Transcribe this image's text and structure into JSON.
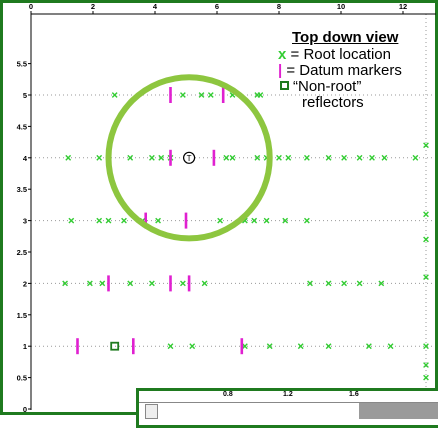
{
  "chart_data": {
    "type": "scatter",
    "title": "",
    "xlabel": "",
    "ylabel": "",
    "xlim": [
      0,
      13
    ],
    "ylim": [
      0,
      6
    ],
    "x_ticks": [
      "0",
      "2",
      "4",
      "6",
      "8",
      "10",
      "12"
    ],
    "y_ticks": [
      "0",
      "0.5",
      "1",
      "1.5",
      "2",
      "2.5",
      "3",
      "3.5",
      "4",
      "4.5",
      "5",
      "5.5"
    ],
    "grid_rows": [
      1,
      2,
      3,
      4,
      5
    ],
    "series": [
      {
        "name": "Root location",
        "marker": "x",
        "color": "#33cc33",
        "points": [
          [
            2.7,
            5.0
          ],
          [
            4.9,
            5.0
          ],
          [
            5.5,
            5.0
          ],
          [
            5.8,
            5.0
          ],
          [
            6.5,
            5.0
          ],
          [
            7.3,
            5.0
          ],
          [
            7.4,
            5.0
          ],
          [
            1.2,
            4.0
          ],
          [
            2.2,
            4.0
          ],
          [
            2.5,
            4.0
          ],
          [
            3.2,
            4.0
          ],
          [
            3.9,
            4.0
          ],
          [
            4.2,
            4.0
          ],
          [
            4.5,
            4.0
          ],
          [
            6.3,
            4.0
          ],
          [
            6.5,
            4.0
          ],
          [
            7.3,
            4.0
          ],
          [
            7.6,
            4.0
          ],
          [
            8.0,
            4.0
          ],
          [
            8.3,
            4.0
          ],
          [
            8.9,
            4.0
          ],
          [
            9.6,
            4.0
          ],
          [
            10.1,
            4.0
          ],
          [
            10.6,
            4.0
          ],
          [
            11.0,
            4.0
          ],
          [
            11.4,
            4.0
          ],
          [
            12.4,
            4.0
          ],
          [
            1.3,
            3.0
          ],
          [
            2.2,
            3.0
          ],
          [
            2.5,
            3.0
          ],
          [
            3.0,
            3.0
          ],
          [
            3.6,
            3.0
          ],
          [
            4.1,
            3.0
          ],
          [
            6.1,
            3.0
          ],
          [
            6.9,
            3.0
          ],
          [
            7.2,
            3.0
          ],
          [
            7.6,
            3.0
          ],
          [
            8.2,
            3.0
          ],
          [
            8.9,
            3.0
          ],
          [
            1.1,
            2.0
          ],
          [
            1.9,
            2.0
          ],
          [
            2.3,
            2.0
          ],
          [
            3.2,
            2.0
          ],
          [
            3.9,
            2.0
          ],
          [
            4.9,
            2.0
          ],
          [
            5.6,
            2.0
          ],
          [
            9.0,
            2.0
          ],
          [
            9.6,
            2.0
          ],
          [
            10.1,
            2.0
          ],
          [
            10.6,
            2.0
          ],
          [
            11.3,
            2.0
          ],
          [
            4.5,
            1.0
          ],
          [
            5.2,
            1.0
          ],
          [
            6.9,
            1.0
          ],
          [
            7.7,
            1.0
          ],
          [
            8.7,
            1.0
          ],
          [
            9.6,
            1.0
          ],
          [
            10.9,
            1.0
          ],
          [
            11.6,
            1.0
          ]
        ]
      },
      {
        "name": "Datum markers",
        "marker": "bar",
        "color": "#e020d0",
        "points": [
          [
            4.5,
            5.0
          ],
          [
            6.2,
            5.0
          ],
          [
            4.5,
            4.0
          ],
          [
            5.9,
            4.0
          ],
          [
            3.7,
            3.0
          ],
          [
            5.0,
            3.0
          ],
          [
            2.5,
            2.0
          ],
          [
            4.5,
            2.0
          ],
          [
            5.1,
            2.0
          ],
          [
            1.5,
            1.0
          ],
          [
            3.3,
            1.0
          ],
          [
            6.8,
            1.0
          ]
        ]
      },
      {
        "name": "“Non-root” reflectors",
        "marker": "square",
        "color": "#1f7a1f",
        "points": [
          [
            2.7,
            1.0
          ]
        ]
      }
    ],
    "highlight_circle": {
      "cx": 5.1,
      "cy": 4.0,
      "r": 2.6,
      "color": "#8dc63f"
    },
    "center_marker": {
      "x": 5.1,
      "y": 4.0,
      "label": "T"
    },
    "legend": {
      "title": "Top down view",
      "placement": "top-right",
      "items": [
        {
          "symbol": "x",
          "text": "= Root location"
        },
        {
          "symbol": "|",
          "text": "= Datum markers"
        },
        {
          "symbol": "□",
          "text": "“Non-root”",
          "text2": "reflectors"
        }
      ]
    }
  },
  "inset": {
    "ruler_labels": [
      "0.8",
      "1.2",
      "1.6"
    ]
  }
}
